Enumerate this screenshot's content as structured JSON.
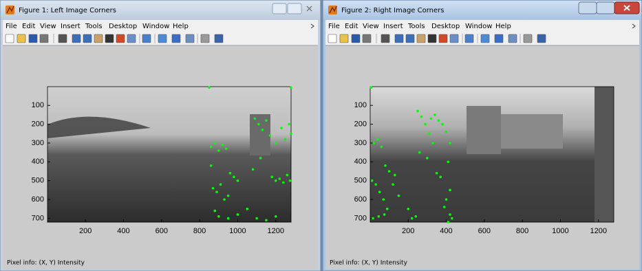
{
  "windows": [
    {
      "title": "Figure 1: Left Image Corners",
      "active": false,
      "menu": [
        "File",
        "Edit",
        "View",
        "Insert",
        "Tools",
        "Desktop",
        "Window",
        "Help"
      ],
      "status": "Pixel info: (X, Y)  Intensity",
      "axes": {
        "xlim": [
          0.5,
          1280.5
        ],
        "ylim": [
          0.5,
          720.5
        ],
        "y_reversed": true,
        "xticks": [
          200,
          400,
          600,
          800,
          1000,
          1200
        ],
        "yticks": [
          100,
          200,
          300,
          400,
          500,
          600,
          700
        ],
        "corner_color": "#00ff00",
        "corners": {
          "x": [
            850,
            1280,
            1090,
            1110,
            1130,
            1150,
            1170,
            1200,
            1230,
            1250,
            1270,
            1280,
            860,
            880,
            900,
            920,
            940,
            960,
            980,
            1000,
            870,
            890,
            910,
            930,
            950,
            1180,
            1200,
            1220,
            1240,
            1260,
            1275,
            880,
            900,
            950,
            1000,
            1050,
            1100,
            1150,
            1200,
            860,
            1120,
            1080
          ],
          "y": [
            5,
            5,
            170,
            200,
            230,
            180,
            260,
            300,
            220,
            280,
            200,
            250,
            320,
            300,
            340,
            310,
            330,
            460,
            480,
            500,
            540,
            560,
            520,
            600,
            580,
            480,
            500,
            490,
            510,
            470,
            500,
            660,
            690,
            700,
            680,
            650,
            700,
            710,
            690,
            420,
            380,
            440
          ]
        }
      }
    },
    {
      "title": "Figure 2: Right Image Corners",
      "active": true,
      "menu": [
        "File",
        "Edit",
        "View",
        "Insert",
        "Tools",
        "Desktop",
        "Window",
        "Help"
      ],
      "status": "Pixel info: (X, Y)  Intensity",
      "axes": {
        "xlim": [
          0.5,
          1280.5
        ],
        "ylim": [
          0.5,
          720.5
        ],
        "y_reversed": true,
        "xticks": [
          200,
          400,
          600,
          800,
          1000,
          1200
        ],
        "yticks": [
          100,
          200,
          300,
          400,
          500,
          600,
          700
        ],
        "corner_color": "#00ff00",
        "corners": {
          "x": [
            5,
            20,
            40,
            60,
            80,
            100,
            10,
            30,
            50,
            70,
            90,
            15,
            45,
            75,
            250,
            270,
            290,
            310,
            330,
            260,
            300,
            320,
            340,
            360,
            380,
            400,
            420,
            410,
            400,
            390,
            420,
            430,
            410,
            420,
            350,
            370,
            200,
            220,
            240,
            150,
            120,
            130
          ],
          "y": [
            5,
            300,
            280,
            320,
            420,
            450,
            500,
            520,
            560,
            600,
            650,
            700,
            690,
            680,
            130,
            160,
            200,
            250,
            300,
            350,
            380,
            170,
            150,
            180,
            200,
            240,
            300,
            400,
            600,
            640,
            680,
            700,
            720,
            550,
            460,
            480,
            650,
            700,
            690,
            580,
            520,
            470
          ]
        }
      }
    }
  ]
}
